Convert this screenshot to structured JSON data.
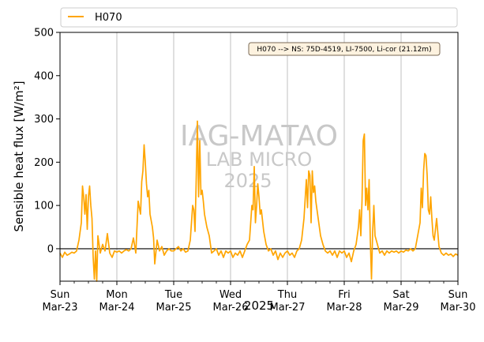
{
  "chart_data": {
    "type": "line",
    "x_unit": "date",
    "xlim": [
      "2025-03-23",
      "2025-03-30"
    ],
    "ylim": [
      -75,
      500
    ],
    "ylabel": "Sensible heat flux [W/m²]",
    "xlabel": "2025",
    "y_ticks": [
      0,
      100,
      200,
      300,
      400,
      500
    ],
    "x_ticks": [
      {
        "date": "2025-03-23",
        "day": "Sun",
        "label": "Mar-23"
      },
      {
        "date": "2025-03-24",
        "day": "Mon",
        "label": "Mar-24"
      },
      {
        "date": "2025-03-25",
        "day": "Tue",
        "label": "Mar-25"
      },
      {
        "date": "2025-03-26",
        "day": "Wed",
        "label": "Mar-26"
      },
      {
        "date": "2025-03-27",
        "day": "Thu",
        "label": "Mar-27"
      },
      {
        "date": "2025-03-28",
        "day": "Fri",
        "label": "Mar-28"
      },
      {
        "date": "2025-03-29",
        "day": "Sat",
        "label": "Mar-29"
      },
      {
        "date": "2025-03-30",
        "day": "Sun",
        "label": "Mar-30"
      }
    ],
    "grid": "vertical at day ticks",
    "zero_line": true,
    "legend": "top, above plot",
    "series": [
      {
        "name": "H070",
        "color": "#FFA500",
        "points": [
          [
            "2025-03-23 00:00",
            -10
          ],
          [
            "2025-03-23 01:00",
            -20
          ],
          [
            "2025-03-23 02:00",
            -8
          ],
          [
            "2025-03-23 03:00",
            -15
          ],
          [
            "2025-03-23 04:00",
            -12
          ],
          [
            "2025-03-23 05:00",
            -8
          ],
          [
            "2025-03-23 06:00",
            -10
          ],
          [
            "2025-03-23 07:00",
            -5
          ],
          [
            "2025-03-23 08:00",
            20
          ],
          [
            "2025-03-23 09:00",
            60
          ],
          [
            "2025-03-23 09:30",
            145
          ],
          [
            "2025-03-23 10:00",
            120
          ],
          [
            "2025-03-23 10:30",
            80
          ],
          [
            "2025-03-23 11:00",
            125
          ],
          [
            "2025-03-23 11:30",
            45
          ],
          [
            "2025-03-23 12:00",
            120
          ],
          [
            "2025-03-23 12:30",
            145
          ],
          [
            "2025-03-23 13:00",
            100
          ],
          [
            "2025-03-23 13:30",
            70
          ],
          [
            "2025-03-23 14:00",
            -20
          ],
          [
            "2025-03-23 14:30",
            -70
          ],
          [
            "2025-03-23 15:00",
            -5
          ],
          [
            "2025-03-23 15:30",
            -75
          ],
          [
            "2025-03-23 16:00",
            30
          ],
          [
            "2025-03-23 17:00",
            -10
          ],
          [
            "2025-03-23 18:00",
            10
          ],
          [
            "2025-03-23 19:00",
            -5
          ],
          [
            "2025-03-23 20:00",
            35
          ],
          [
            "2025-03-23 21:00",
            -10
          ],
          [
            "2025-03-23 22:00",
            -20
          ],
          [
            "2025-03-23 23:00",
            -5
          ],
          [
            "2025-03-24 00:00",
            -8
          ],
          [
            "2025-03-24 01:00",
            -5
          ],
          [
            "2025-03-24 02:00",
            -10
          ],
          [
            "2025-03-24 03:00",
            -5
          ],
          [
            "2025-03-24 04:00",
            -2
          ],
          [
            "2025-03-24 05:00",
            -5
          ],
          [
            "2025-03-24 06:00",
            0
          ],
          [
            "2025-03-24 07:00",
            25
          ],
          [
            "2025-03-24 08:00",
            -10
          ],
          [
            "2025-03-24 09:00",
            110
          ],
          [
            "2025-03-24 10:00",
            80
          ],
          [
            "2025-03-24 10:30",
            155
          ],
          [
            "2025-03-24 11:00",
            180
          ],
          [
            "2025-03-24 11:30",
            240
          ],
          [
            "2025-03-24 12:00",
            200
          ],
          [
            "2025-03-24 12:30",
            150
          ],
          [
            "2025-03-24 13:00",
            120
          ],
          [
            "2025-03-24 13:30",
            135
          ],
          [
            "2025-03-24 14:00",
            80
          ],
          [
            "2025-03-24 15:00",
            50
          ],
          [
            "2025-03-24 15:30",
            25
          ],
          [
            "2025-03-24 16:00",
            -35
          ],
          [
            "2025-03-24 17:00",
            20
          ],
          [
            "2025-03-24 18:00",
            -5
          ],
          [
            "2025-03-24 19:00",
            5
          ],
          [
            "2025-03-24 20:00",
            -15
          ],
          [
            "2025-03-24 21:00",
            -5
          ],
          [
            "2025-03-24 22:00",
            0
          ],
          [
            "2025-03-24 23:00",
            -5
          ],
          [
            "2025-03-25 00:00",
            -5
          ],
          [
            "2025-03-25 01:00",
            0
          ],
          [
            "2025-03-25 02:00",
            5
          ],
          [
            "2025-03-25 03:00",
            -5
          ],
          [
            "2025-03-25 04:00",
            0
          ],
          [
            "2025-03-25 05:00",
            -8
          ],
          [
            "2025-03-25 06:00",
            -5
          ],
          [
            "2025-03-25 07:00",
            20
          ],
          [
            "2025-03-25 08:00",
            100
          ],
          [
            "2025-03-25 08:30",
            90
          ],
          [
            "2025-03-25 09:00",
            40
          ],
          [
            "2025-03-25 09:30",
            160
          ],
          [
            "2025-03-25 10:00",
            295
          ],
          [
            "2025-03-25 10:30",
            120
          ],
          [
            "2025-03-25 11:00",
            250
          ],
          [
            "2025-03-25 11:30",
            125
          ],
          [
            "2025-03-25 12:00",
            135
          ],
          [
            "2025-03-25 12:30",
            110
          ],
          [
            "2025-03-25 13:00",
            80
          ],
          [
            "2025-03-25 14:00",
            50
          ],
          [
            "2025-03-25 15:00",
            30
          ],
          [
            "2025-03-25 16:00",
            -10
          ],
          [
            "2025-03-25 17:00",
            -5
          ],
          [
            "2025-03-25 18:00",
            0
          ],
          [
            "2025-03-25 19:00",
            -15
          ],
          [
            "2025-03-25 20:00",
            -5
          ],
          [
            "2025-03-25 21:00",
            -20
          ],
          [
            "2025-03-25 22:00",
            -5
          ],
          [
            "2025-03-25 23:00",
            -10
          ],
          [
            "2025-03-26 00:00",
            -5
          ],
          [
            "2025-03-26 01:00",
            -20
          ],
          [
            "2025-03-26 02:00",
            -10
          ],
          [
            "2025-03-26 03:00",
            -15
          ],
          [
            "2025-03-26 04:00",
            -5
          ],
          [
            "2025-03-26 05:00",
            -20
          ],
          [
            "2025-03-26 06:00",
            -5
          ],
          [
            "2025-03-26 07:00",
            10
          ],
          [
            "2025-03-26 08:00",
            20
          ],
          [
            "2025-03-26 09:00",
            100
          ],
          [
            "2025-03-26 09:30",
            90
          ],
          [
            "2025-03-26 10:00",
            190
          ],
          [
            "2025-03-26 10:30",
            60
          ],
          [
            "2025-03-26 11:00",
            100
          ],
          [
            "2025-03-26 11:30",
            150
          ],
          [
            "2025-03-26 12:00",
            120
          ],
          [
            "2025-03-26 12:30",
            80
          ],
          [
            "2025-03-26 13:00",
            90
          ],
          [
            "2025-03-26 14:00",
            40
          ],
          [
            "2025-03-26 15:00",
            10
          ],
          [
            "2025-03-26 16:00",
            -5
          ],
          [
            "2025-03-26 17:00",
            0
          ],
          [
            "2025-03-26 18:00",
            -15
          ],
          [
            "2025-03-26 19:00",
            -5
          ],
          [
            "2025-03-26 20:00",
            -25
          ],
          [
            "2025-03-26 21:00",
            -10
          ],
          [
            "2025-03-26 22:00",
            -20
          ],
          [
            "2025-03-26 23:00",
            -10
          ],
          [
            "2025-03-27 00:00",
            -5
          ],
          [
            "2025-03-27 01:00",
            -15
          ],
          [
            "2025-03-27 02:00",
            -10
          ],
          [
            "2025-03-27 03:00",
            -20
          ],
          [
            "2025-03-27 04:00",
            -5
          ],
          [
            "2025-03-27 05:00",
            0
          ],
          [
            "2025-03-27 06:00",
            20
          ],
          [
            "2025-03-27 07:00",
            70
          ],
          [
            "2025-03-27 08:00",
            160
          ],
          [
            "2025-03-27 08:30",
            95
          ],
          [
            "2025-03-27 09:00",
            180
          ],
          [
            "2025-03-27 09:30",
            170
          ],
          [
            "2025-03-27 10:00",
            60
          ],
          [
            "2025-03-27 10:30",
            180
          ],
          [
            "2025-03-27 11:00",
            130
          ],
          [
            "2025-03-27 11:30",
            145
          ],
          [
            "2025-03-27 12:00",
            110
          ],
          [
            "2025-03-27 13:00",
            70
          ],
          [
            "2025-03-27 14:00",
            30
          ],
          [
            "2025-03-27 15:00",
            10
          ],
          [
            "2025-03-27 16:00",
            -5
          ],
          [
            "2025-03-27 17:00",
            -10
          ],
          [
            "2025-03-27 18:00",
            -5
          ],
          [
            "2025-03-27 19:00",
            -15
          ],
          [
            "2025-03-27 20:00",
            -5
          ],
          [
            "2025-03-27 21:00",
            -20
          ],
          [
            "2025-03-27 22:00",
            -5
          ],
          [
            "2025-03-27 23:00",
            -10
          ],
          [
            "2025-03-28 00:00",
            -5
          ],
          [
            "2025-03-28 01:00",
            -20
          ],
          [
            "2025-03-28 02:00",
            -10
          ],
          [
            "2025-03-28 03:00",
            -30
          ],
          [
            "2025-03-28 04:00",
            -5
          ],
          [
            "2025-03-28 05:00",
            10
          ],
          [
            "2025-03-28 06:00",
            50
          ],
          [
            "2025-03-28 06:30",
            90
          ],
          [
            "2025-03-28 07:00",
            30
          ],
          [
            "2025-03-28 07:30",
            110
          ],
          [
            "2025-03-28 08:00",
            250
          ],
          [
            "2025-03-28 08:30",
            265
          ],
          [
            "2025-03-28 09:00",
            100
          ],
          [
            "2025-03-28 09:30",
            140
          ],
          [
            "2025-03-28 10:00",
            90
          ],
          [
            "2025-03-28 10:30",
            160
          ],
          [
            "2025-03-28 11:00",
            20
          ],
          [
            "2025-03-28 11:30",
            -70
          ],
          [
            "2025-03-28 12:00",
            40
          ],
          [
            "2025-03-28 12:30",
            100
          ],
          [
            "2025-03-28 13:00",
            30
          ],
          [
            "2025-03-28 14:00",
            10
          ],
          [
            "2025-03-28 15:00",
            -10
          ],
          [
            "2025-03-28 16:00",
            -5
          ],
          [
            "2025-03-28 17:00",
            -15
          ],
          [
            "2025-03-28 18:00",
            -5
          ],
          [
            "2025-03-28 19:00",
            -10
          ],
          [
            "2025-03-28 20:00",
            -5
          ],
          [
            "2025-03-28 21:00",
            -8
          ],
          [
            "2025-03-28 22:00",
            -5
          ],
          [
            "2025-03-28 23:00",
            -10
          ],
          [
            "2025-03-29 00:00",
            -5
          ],
          [
            "2025-03-29 01:00",
            -8
          ],
          [
            "2025-03-29 02:00",
            -3
          ],
          [
            "2025-03-29 03:00",
            -5
          ],
          [
            "2025-03-29 04:00",
            0
          ],
          [
            "2025-03-29 05:00",
            -5
          ],
          [
            "2025-03-29 06:00",
            0
          ],
          [
            "2025-03-29 07:00",
            30
          ],
          [
            "2025-03-29 08:00",
            60
          ],
          [
            "2025-03-29 08:30",
            140
          ],
          [
            "2025-03-29 09:00",
            95
          ],
          [
            "2025-03-29 09:30",
            180
          ],
          [
            "2025-03-29 10:00",
            220
          ],
          [
            "2025-03-29 10:30",
            215
          ],
          [
            "2025-03-29 11:00",
            170
          ],
          [
            "2025-03-29 11:30",
            90
          ],
          [
            "2025-03-29 12:00",
            80
          ],
          [
            "2025-03-29 12:30",
            120
          ],
          [
            "2025-03-29 13:00",
            70
          ],
          [
            "2025-03-29 13:30",
            30
          ],
          [
            "2025-03-29 14:00",
            20
          ],
          [
            "2025-03-29 15:00",
            70
          ],
          [
            "2025-03-29 16:00",
            5
          ],
          [
            "2025-03-29 17:00",
            -10
          ],
          [
            "2025-03-29 18:00",
            -15
          ],
          [
            "2025-03-29 19:00",
            -10
          ],
          [
            "2025-03-29 20:00",
            -15
          ],
          [
            "2025-03-29 21:00",
            -12
          ],
          [
            "2025-03-29 22:00",
            -18
          ],
          [
            "2025-03-29 23:00",
            -12
          ],
          [
            "2025-03-30 00:00",
            -15
          ]
        ]
      }
    ],
    "annotation": "H070 --> NS: 75D-4519, LI-7500, Li-cor (21.12m)",
    "watermark": [
      "IAG-MATAO",
      "LAB MICRO",
      "2025"
    ]
  }
}
